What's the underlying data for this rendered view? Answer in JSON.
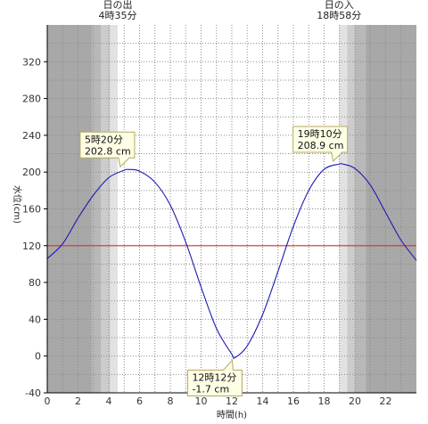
{
  "chart_data": {
    "type": "line",
    "title": "",
    "xlabel": "時間(h)",
    "ylabel": "水位(cm)",
    "xlim": [
      0,
      24
    ],
    "ylim": [
      -40,
      360
    ],
    "x_ticks": [
      "0",
      "2",
      "4",
      "6",
      "8",
      "10",
      "12",
      "14",
      "16",
      "18",
      "20",
      "22"
    ],
    "y_ticks": [
      "-40",
      "0",
      "40",
      "80",
      "120",
      "160",
      "200",
      "240",
      "280",
      "320"
    ],
    "grid": "dotted vertical lines every 1 h, dotted horizontal lines every 20 cm",
    "reference_line": {
      "value": 120,
      "color": "#e03030"
    },
    "series": [
      {
        "color": "#1c1cb4",
        "x": [
          0,
          1,
          2,
          3,
          4,
          5,
          5.33,
          6,
          7,
          8,
          9,
          10,
          11,
          12,
          12.2,
          13,
          14,
          15,
          16,
          17,
          18,
          19,
          19.17,
          20,
          21,
          22,
          23,
          24
        ],
        "y": [
          106,
          122,
          150,
          175,
          194,
          202,
          202.8,
          201,
          189,
          164,
          124,
          75,
          30,
          2,
          -1.7,
          11,
          45,
          92,
          141,
          180,
          203,
          208.8,
          208.9,
          204,
          186,
          156,
          126,
          104
        ]
      }
    ],
    "twilight_bands": [
      {
        "from": 0,
        "to": 2.9,
        "shade": "#a8a8a8"
      },
      {
        "from": 2.9,
        "to": 3.5,
        "shade": "#b8b8b8"
      },
      {
        "from": 3.5,
        "to": 4.1,
        "shade": "#cccccc"
      },
      {
        "from": 4.1,
        "to": 4.58,
        "shade": "#e2e2e2"
      },
      {
        "from": 18.97,
        "to": 19.5,
        "shade": "#e2e2e2"
      },
      {
        "from": 19.5,
        "to": 20.0,
        "shade": "#cccccc"
      },
      {
        "from": 20.0,
        "to": 20.7,
        "shade": "#b8b8b8"
      },
      {
        "from": 20.7,
        "to": 24,
        "shade": "#a8a8a8"
      }
    ],
    "sunrise": {
      "x": 4.58,
      "title": "日の出",
      "time": "4時35分"
    },
    "sunset": {
      "x": 18.97,
      "title": "日の入",
      "time": "18時58分"
    },
    "annotations": [
      {
        "x": 5.33,
        "y": 202.8,
        "time": "5時20分",
        "level": "202.8 cm",
        "placement": "above"
      },
      {
        "x": 12.2,
        "y": -1.7,
        "time": "12時12分",
        "level": "-1.7 cm",
        "placement": "below"
      },
      {
        "x": 19.17,
        "y": 208.9,
        "time": "19時10分",
        "level": "208.9 cm",
        "placement": "above"
      }
    ]
  }
}
